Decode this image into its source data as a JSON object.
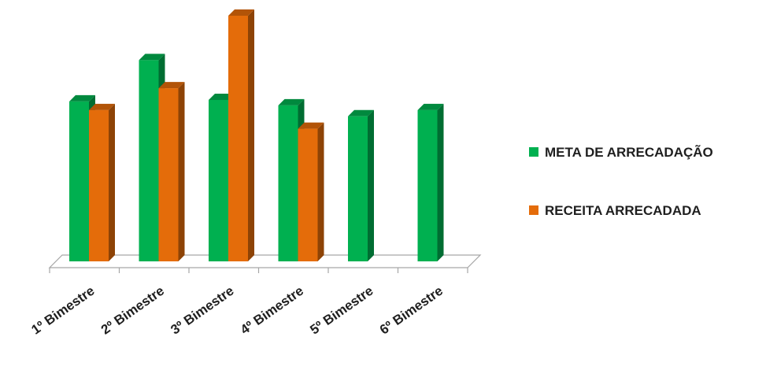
{
  "chart_data": {
    "type": "bar",
    "categories": [
      "1º Bimestre",
      "2º Bimestre",
      "3º Bimestre",
      "4º Bimestre",
      "5º Bimestre",
      "6º Bimestre"
    ],
    "series": [
      {
        "name": "META DE ARRECADAÇÃO",
        "color": "#00b050",
        "values": [
          205,
          258,
          207,
          200,
          186,
          194
        ]
      },
      {
        "name": "RECEITA ARRECADADA",
        "color": "#e46c0a",
        "values": [
          194,
          222,
          315,
          170,
          null,
          null
        ]
      }
    ],
    "ylim": [
      0,
      320
    ],
    "grid": false,
    "legend": "right",
    "style": "3d-column"
  }
}
